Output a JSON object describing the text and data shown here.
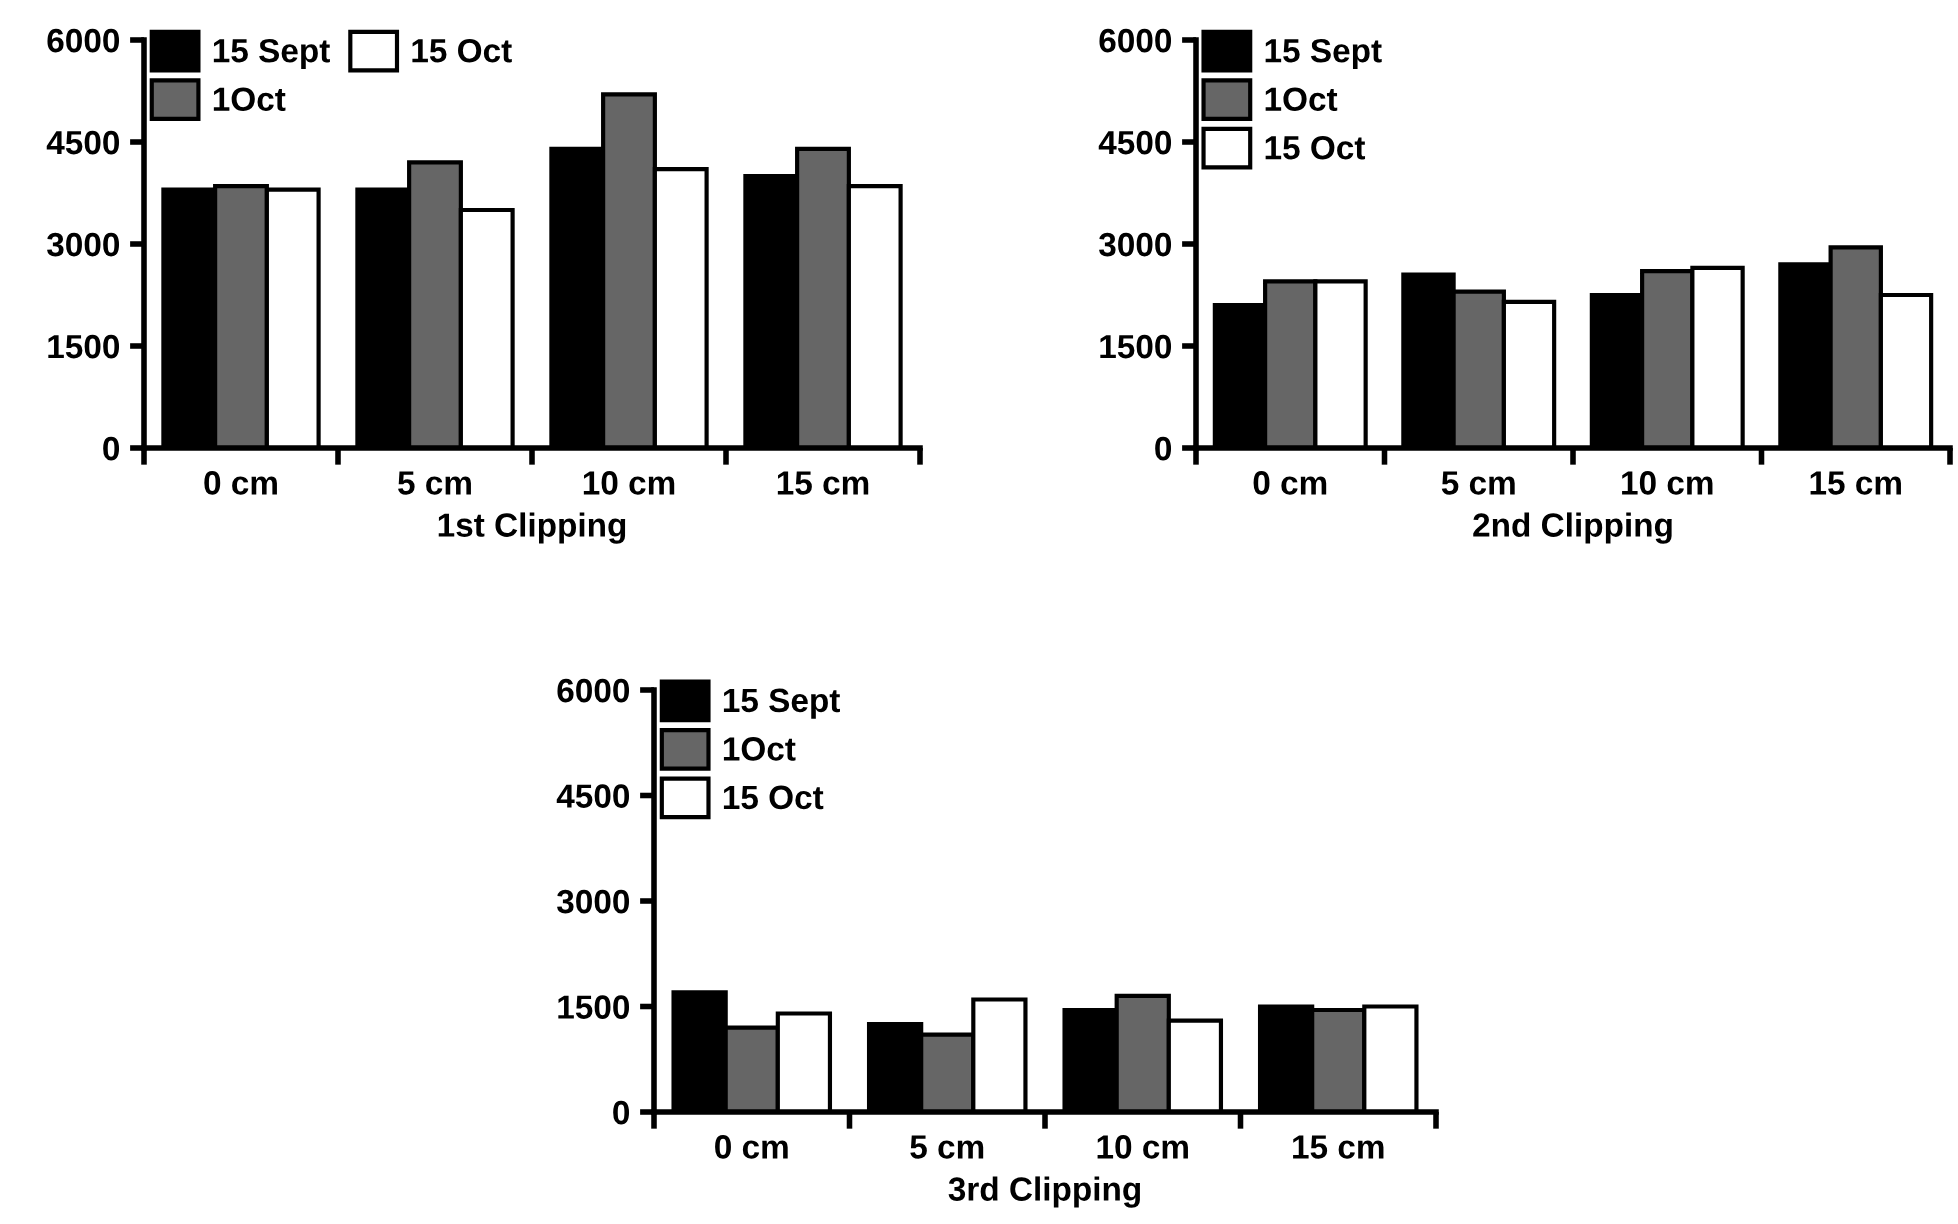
{
  "chart_data": [
    {
      "type": "bar",
      "xlabel": "1st Clipping",
      "categories": [
        "0 cm",
        "5 cm",
        "10 cm",
        "15 cm"
      ],
      "ylim": [
        0,
        6000
      ],
      "yticks": [
        0,
        1500,
        3000,
        4500,
        6000
      ],
      "grid": false,
      "legend": "top left",
      "series": [
        {
          "name": "15 Sept",
          "color": "#000000",
          "values": [
            3800,
            3800,
            4400,
            4000
          ]
        },
        {
          "name": "1Oct",
          "color": "#666666",
          "values": [
            3850,
            4200,
            5200,
            4400
          ]
        },
        {
          "name": "15 Oct",
          "color": "#ffffff",
          "values": [
            3800,
            3500,
            4100,
            3850
          ]
        }
      ]
    },
    {
      "type": "bar",
      "xlabel": "2nd Clipping",
      "categories": [
        "0 cm",
        "5 cm",
        "10 cm",
        "15 cm"
      ],
      "ylim": [
        0,
        6000
      ],
      "yticks": [
        0,
        1500,
        3000,
        4500,
        6000
      ],
      "grid": false,
      "legend": "top left",
      "series": [
        {
          "name": "15 Sept",
          "color": "#000000",
          "values": [
            2100,
            2550,
            2250,
            2700
          ]
        },
        {
          "name": "1Oct",
          "color": "#666666",
          "values": [
            2450,
            2300,
            2600,
            2950
          ]
        },
        {
          "name": "15 Oct",
          "color": "#ffffff",
          "values": [
            2450,
            2150,
            2650,
            2250
          ]
        }
      ]
    },
    {
      "type": "bar",
      "xlabel": "3rd Clipping",
      "categories": [
        "0 cm",
        "5 cm",
        "10 cm",
        "15 cm"
      ],
      "ylim": [
        0,
        6000
      ],
      "yticks": [
        0,
        1500,
        3000,
        4500,
        6000
      ],
      "grid": false,
      "legend": "top left",
      "series": [
        {
          "name": "15 Sept",
          "color": "#000000",
          "values": [
            1700,
            1250,
            1450,
            1500
          ]
        },
        {
          "name": "1Oct",
          "color": "#666666",
          "values": [
            1200,
            1100,
            1650,
            1450
          ]
        },
        {
          "name": "15 Oct",
          "color": "#ffffff",
          "values": [
            1400,
            1600,
            1300,
            1500
          ]
        }
      ]
    }
  ]
}
